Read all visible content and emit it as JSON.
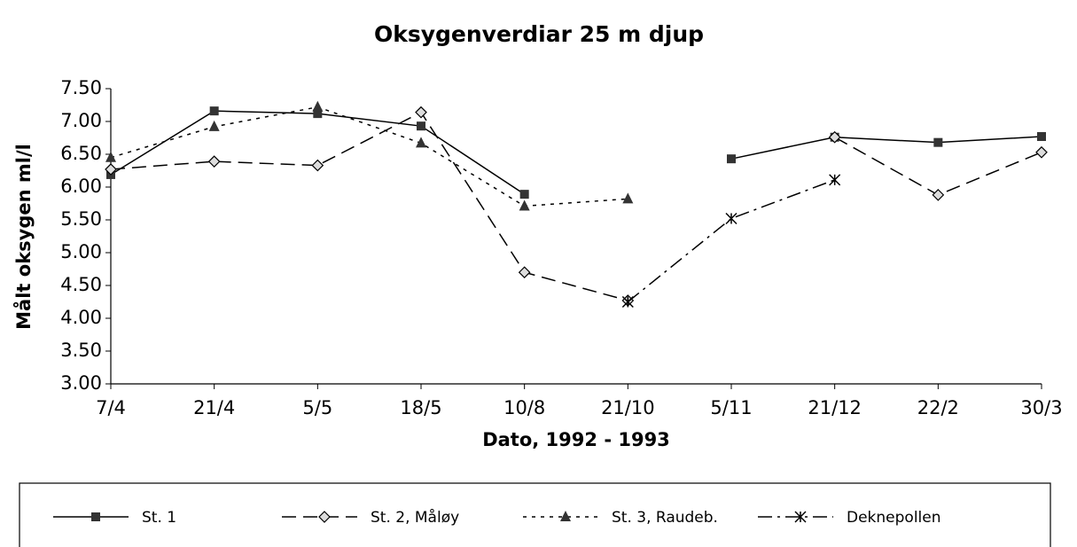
{
  "chart_data": {
    "type": "line",
    "title": "Oksygenverdiar  25 m djup",
    "x_label": "Dato, 1992 - 1993",
    "y_label": "Målt oksygen ml/l",
    "categories": [
      "7/4",
      "21/4",
      "5/5",
      "18/5",
      "10/8",
      "21/10",
      "5/11",
      "21/12",
      "22/2",
      "30/3"
    ],
    "ylim": [
      3,
      7.5
    ],
    "yticks": [
      {
        "value": 3,
        "label": "3.00"
      },
      {
        "value": 3.5,
        "label": "3.50"
      },
      {
        "value": 4,
        "label": "4.00"
      },
      {
        "value": 4.5,
        "label": "4.50"
      },
      {
        "value": 5,
        "label": "5.00"
      },
      {
        "value": 5.5,
        "label": "5.50"
      },
      {
        "value": 6,
        "label": "6.00"
      },
      {
        "value": 6.5,
        "label": "6.50"
      },
      {
        "value": 7,
        "label": "7.00"
      },
      {
        "value": 7.5,
        "label": "7.50"
      }
    ],
    "grid": false,
    "legend": "bottom",
    "series": [
      {
        "name": "St. 1",
        "color": "#000000",
        "dash": "solid",
        "marker": "square",
        "values": [
          6.19,
          7.16,
          7.12,
          6.93,
          5.89,
          null,
          6.43,
          6.76,
          6.68,
          6.77
        ]
      },
      {
        "name": "St. 2, Måløy",
        "color": "#000000",
        "dash": "dashed",
        "marker": "diamond",
        "values": [
          6.27,
          6.39,
          6.33,
          7.14,
          4.7,
          4.27,
          null,
          6.76,
          5.88,
          6.53
        ]
      },
      {
        "name": "St. 3, Raudeb.",
        "color": "#000000",
        "dash": "dotted",
        "marker": "triangle",
        "values": [
          6.45,
          6.92,
          7.22,
          6.67,
          5.71,
          5.82,
          null,
          null,
          null,
          null
        ]
      },
      {
        "name": "Deknepollen",
        "color": "#000000",
        "dash": "dashdot",
        "marker": "x",
        "values": [
          null,
          null,
          null,
          null,
          null,
          4.25,
          5.52,
          6.11,
          null,
          null
        ]
      }
    ]
  }
}
